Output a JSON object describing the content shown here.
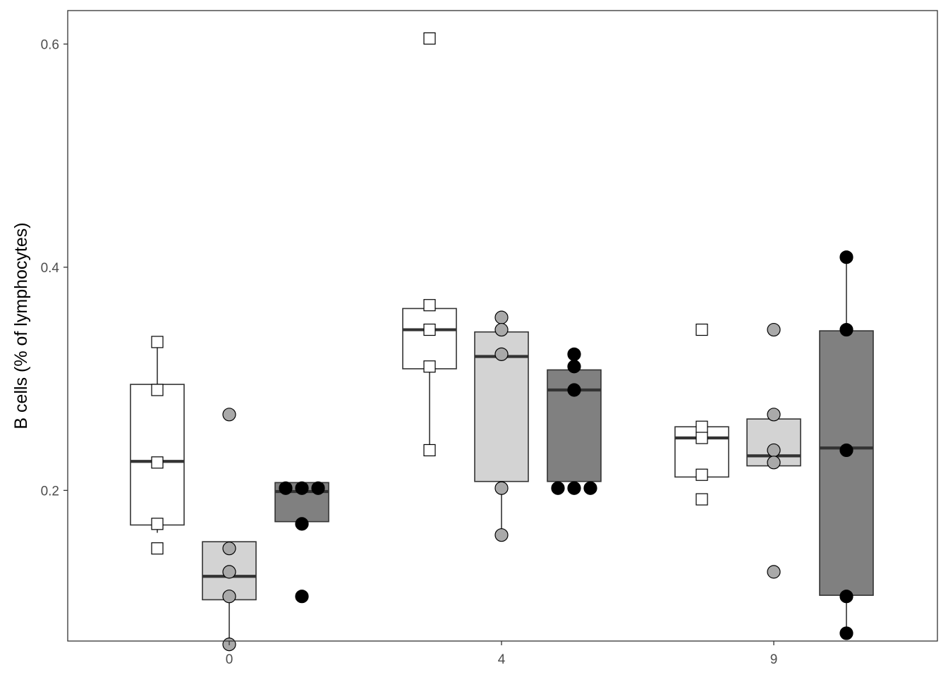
{
  "chart_data": {
    "type": "boxplot",
    "title": "",
    "xlabel": "",
    "ylabel": "B cells (% of lymphocytes)",
    "categories": [
      "0",
      "4",
      "9"
    ],
    "yticks": [
      "0.2",
      "0.4",
      "0.6"
    ],
    "ylim": [
      0.065,
      0.63
    ],
    "grid": false,
    "legend": "none",
    "colors": {
      "series_fill": [
        "#ffffff",
        "#d3d3d3",
        "#808080"
      ],
      "point_fill": [
        "#ffffff",
        "#a9a9a9",
        "#000000"
      ],
      "outline": "#000000",
      "median": "#333333"
    },
    "series": [
      {
        "marker": "square",
        "groups": [
          {
            "category": "0",
            "whisker_low": 0.162,
            "q1": 0.169,
            "median": 0.226,
            "q3": 0.295,
            "whisker_high": 0.333,
            "points": [
              0.333,
              0.29,
              0.225,
              0.17,
              0.148
            ]
          },
          {
            "category": "4",
            "whisker_low": 0.236,
            "q1": 0.309,
            "median": 0.344,
            "q3": 0.363,
            "whisker_high": 0.363,
            "points": [
              0.605,
              0.366,
              0.344,
              0.311,
              0.236
            ]
          },
          {
            "category": "9",
            "whisker_low": 0.212,
            "q1": 0.212,
            "median": 0.247,
            "q3": 0.257,
            "whisker_high": 0.257,
            "points": [
              0.344,
              0.257,
              0.247,
              0.214,
              0.192
            ]
          }
        ]
      },
      {
        "marker": "circle",
        "groups": [
          {
            "category": "0",
            "whisker_low": 0.062,
            "q1": 0.102,
            "median": 0.123,
            "q3": 0.154,
            "whisker_high": 0.154,
            "points": [
              0.268,
              0.148,
              0.127,
              0.105,
              0.062
            ]
          },
          {
            "category": "4",
            "whisker_low": 0.16,
            "q1": 0.208,
            "median": 0.32,
            "q3": 0.342,
            "whisker_high": 0.342,
            "points": [
              0.355,
              0.344,
              0.322,
              0.202,
              0.16
            ]
          },
          {
            "category": "9",
            "whisker_low": 0.222,
            "q1": 0.222,
            "median": 0.231,
            "q3": 0.264,
            "whisker_high": 0.264,
            "points": [
              0.344,
              0.268,
              0.236,
              0.225,
              0.127
            ]
          }
        ]
      },
      {
        "marker": "circle",
        "groups": [
          {
            "category": "0",
            "whisker_low": 0.172,
            "q1": 0.172,
            "median": 0.199,
            "q3": 0.207,
            "whisker_high": 0.207,
            "points": [
              0.202,
              0.202,
              0.202,
              0.17,
              0.105
            ]
          },
          {
            "category": "4",
            "whisker_low": 0.208,
            "q1": 0.208,
            "median": 0.29,
            "q3": 0.308,
            "whisker_high": 0.308,
            "points": [
              0.322,
              0.311,
              0.29,
              0.202,
              0.202,
              0.202
            ]
          },
          {
            "category": "9",
            "whisker_low": 0.072,
            "q1": 0.106,
            "median": 0.238,
            "q3": 0.343,
            "whisker_high": 0.409,
            "points": [
              0.409,
              0.344,
              0.236,
              0.105,
              0.072
            ]
          }
        ]
      }
    ]
  }
}
